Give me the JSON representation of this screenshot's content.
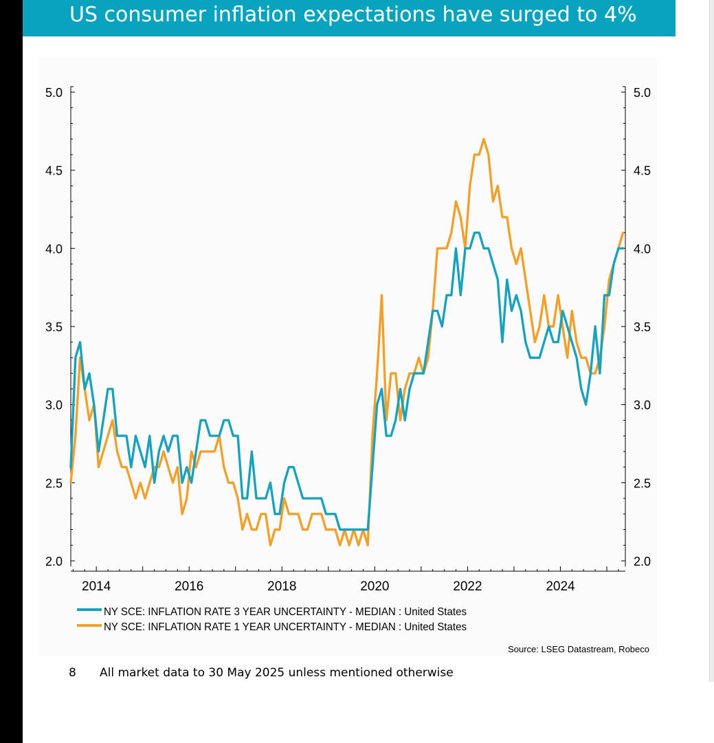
{
  "header": {
    "title": "US consumer inflation expectations have surged to 4%"
  },
  "footer": {
    "page_number": "8",
    "note": "All market data to 30 May 2025 unless mentioned otherwise"
  },
  "chart_data": {
    "type": "line",
    "title": "",
    "xlabel": "",
    "ylabel": "",
    "x_range": [
      2013.45,
      2025.4
    ],
    "ylim": [
      2.0,
      5.0
    ],
    "y_ticks": [
      "2.0",
      "2.5",
      "3.0",
      "3.5",
      "4.0",
      "4.5",
      "5.0"
    ],
    "x_ticks": [
      "2014",
      "2016",
      "2018",
      "2020",
      "2022",
      "2024"
    ],
    "grid": false,
    "legend_position": "bottom-left",
    "source": "Source: LSEG Datastream, Robeco",
    "colors": {
      "three_year": "#1aa2bd",
      "one_year": "#f0a12c"
    },
    "series": [
      {
        "name": "NY SCE: INFLATION RATE 3 YEAR UNCERTAINTY - MEDIAN : United States",
        "x": [
          2013.45,
          2013.55,
          2013.65,
          2013.75,
          2013.85,
          2013.95,
          2014.05,
          2014.15,
          2014.25,
          2014.35,
          2014.45,
          2014.55,
          2014.65,
          2014.75,
          2014.85,
          2014.95,
          2015.05,
          2015.15,
          2015.25,
          2015.35,
          2015.45,
          2015.55,
          2015.65,
          2015.75,
          2015.85,
          2015.95,
          2016.05,
          2016.15,
          2016.25,
          2016.35,
          2016.45,
          2016.55,
          2016.65,
          2016.75,
          2016.85,
          2016.95,
          2017.05,
          2017.15,
          2017.25,
          2017.35,
          2017.45,
          2017.55,
          2017.65,
          2017.75,
          2017.85,
          2017.95,
          2018.05,
          2018.15,
          2018.25,
          2018.35,
          2018.45,
          2018.55,
          2018.65,
          2018.75,
          2018.85,
          2018.95,
          2019.05,
          2019.15,
          2019.25,
          2019.35,
          2019.45,
          2019.55,
          2019.65,
          2019.75,
          2019.85,
          2019.95,
          2020.05,
          2020.15,
          2020.25,
          2020.35,
          2020.45,
          2020.55,
          2020.65,
          2020.75,
          2020.85,
          2020.95,
          2021.05,
          2021.15,
          2021.25,
          2021.35,
          2021.45,
          2021.55,
          2021.65,
          2021.75,
          2021.85,
          2021.95,
          2022.05,
          2022.15,
          2022.25,
          2022.35,
          2022.45,
          2022.55,
          2022.65,
          2022.75,
          2022.85,
          2022.95,
          2023.05,
          2023.15,
          2023.25,
          2023.35,
          2023.45,
          2023.55,
          2023.65,
          2023.75,
          2023.85,
          2023.95,
          2024.05,
          2024.15,
          2024.25,
          2024.35,
          2024.45,
          2024.55,
          2024.65,
          2024.75,
          2024.85,
          2024.95,
          2025.05,
          2025.15,
          2025.25,
          2025.35
        ],
        "values": [
          2.6,
          3.3,
          3.4,
          3.1,
          3.2,
          3.0,
          2.7,
          2.9,
          3.1,
          3.1,
          2.8,
          2.8,
          2.8,
          2.6,
          2.8,
          2.7,
          2.6,
          2.8,
          2.5,
          2.7,
          2.8,
          2.7,
          2.8,
          2.8,
          2.5,
          2.6,
          2.5,
          2.7,
          2.9,
          2.9,
          2.8,
          2.8,
          2.8,
          2.9,
          2.9,
          2.8,
          2.8,
          2.4,
          2.4,
          2.7,
          2.4,
          2.4,
          2.4,
          2.5,
          2.3,
          2.3,
          2.5,
          2.6,
          2.6,
          2.5,
          2.4,
          2.4,
          2.4,
          2.4,
          2.4,
          2.3,
          2.3,
          2.3,
          2.2,
          2.2,
          2.2,
          2.2,
          2.2,
          2.2,
          2.2,
          2.6,
          3.0,
          3.1,
          2.8,
          2.8,
          2.9,
          3.1,
          2.9,
          3.1,
          3.2,
          3.2,
          3.2,
          3.4,
          3.6,
          3.6,
          3.5,
          3.7,
          3.7,
          4.0,
          3.7,
          4.0,
          4.0,
          4.1,
          4.1,
          4.0,
          4.0,
          3.9,
          3.8,
          3.4,
          3.8,
          3.6,
          3.7,
          3.6,
          3.4,
          3.3,
          3.3,
          3.3,
          3.4,
          3.5,
          3.4,
          3.4,
          3.6,
          3.5,
          3.4,
          3.3,
          3.1,
          3.0,
          3.2,
          3.5,
          3.2,
          3.7,
          3.7,
          3.9,
          4.0,
          4.0
        ]
      },
      {
        "name": "NY SCE: INFLATION RATE 1 YEAR UNCERTAINTY - MEDIAN : United States",
        "x": [
          2013.45,
          2013.55,
          2013.65,
          2013.75,
          2013.85,
          2013.95,
          2014.05,
          2014.15,
          2014.25,
          2014.35,
          2014.45,
          2014.55,
          2014.65,
          2014.75,
          2014.85,
          2014.95,
          2015.05,
          2015.15,
          2015.25,
          2015.35,
          2015.45,
          2015.55,
          2015.65,
          2015.75,
          2015.85,
          2015.95,
          2016.05,
          2016.15,
          2016.25,
          2016.35,
          2016.45,
          2016.55,
          2016.65,
          2016.75,
          2016.85,
          2016.95,
          2017.05,
          2017.15,
          2017.25,
          2017.35,
          2017.45,
          2017.55,
          2017.65,
          2017.75,
          2017.85,
          2017.95,
          2018.05,
          2018.15,
          2018.25,
          2018.35,
          2018.45,
          2018.55,
          2018.65,
          2018.75,
          2018.85,
          2018.95,
          2019.05,
          2019.15,
          2019.25,
          2019.35,
          2019.45,
          2019.55,
          2019.65,
          2019.75,
          2019.85,
          2019.95,
          2020.05,
          2020.15,
          2020.25,
          2020.35,
          2020.45,
          2020.55,
          2020.65,
          2020.75,
          2020.85,
          2020.95,
          2021.05,
          2021.15,
          2021.25,
          2021.35,
          2021.45,
          2021.55,
          2021.65,
          2021.75,
          2021.85,
          2021.95,
          2022.05,
          2022.15,
          2022.25,
          2022.35,
          2022.45,
          2022.55,
          2022.65,
          2022.75,
          2022.85,
          2022.95,
          2023.05,
          2023.15,
          2023.25,
          2023.35,
          2023.45,
          2023.55,
          2023.65,
          2023.75,
          2023.85,
          2023.95,
          2024.05,
          2024.15,
          2024.25,
          2024.35,
          2024.45,
          2024.55,
          2024.65,
          2024.75,
          2024.85,
          2024.95,
          2025.05,
          2025.15,
          2025.25,
          2025.35
        ],
        "values": [
          2.5,
          2.8,
          3.3,
          3.1,
          2.9,
          3.0,
          2.6,
          2.7,
          2.8,
          2.9,
          2.7,
          2.6,
          2.6,
          2.5,
          2.4,
          2.5,
          2.4,
          2.5,
          2.6,
          2.6,
          2.7,
          2.6,
          2.5,
          2.6,
          2.3,
          2.4,
          2.7,
          2.6,
          2.7,
          2.7,
          2.7,
          2.7,
          2.8,
          2.6,
          2.5,
          2.5,
          2.4,
          2.2,
          2.3,
          2.2,
          2.2,
          2.3,
          2.3,
          2.1,
          2.2,
          2.2,
          2.4,
          2.3,
          2.3,
          2.3,
          2.2,
          2.2,
          2.3,
          2.3,
          2.3,
          2.2,
          2.2,
          2.2,
          2.1,
          2.2,
          2.1,
          2.2,
          2.1,
          2.2,
          2.1,
          2.8,
          3.2,
          3.7,
          2.9,
          3.2,
          3.2,
          2.9,
          3.1,
          3.2,
          3.2,
          3.3,
          3.2,
          3.3,
          3.6,
          4.0,
          4.0,
          4.0,
          4.1,
          4.3,
          4.2,
          4.0,
          4.4,
          4.6,
          4.6,
          4.7,
          4.6,
          4.3,
          4.4,
          4.2,
          4.2,
          4.0,
          3.9,
          4.0,
          3.8,
          3.6,
          3.4,
          3.5,
          3.7,
          3.5,
          3.5,
          3.7,
          3.5,
          3.3,
          3.6,
          3.4,
          3.3,
          3.3,
          3.2,
          3.2,
          3.3,
          3.5,
          3.8,
          3.9,
          4.0,
          4.1
        ]
      }
    ]
  }
}
